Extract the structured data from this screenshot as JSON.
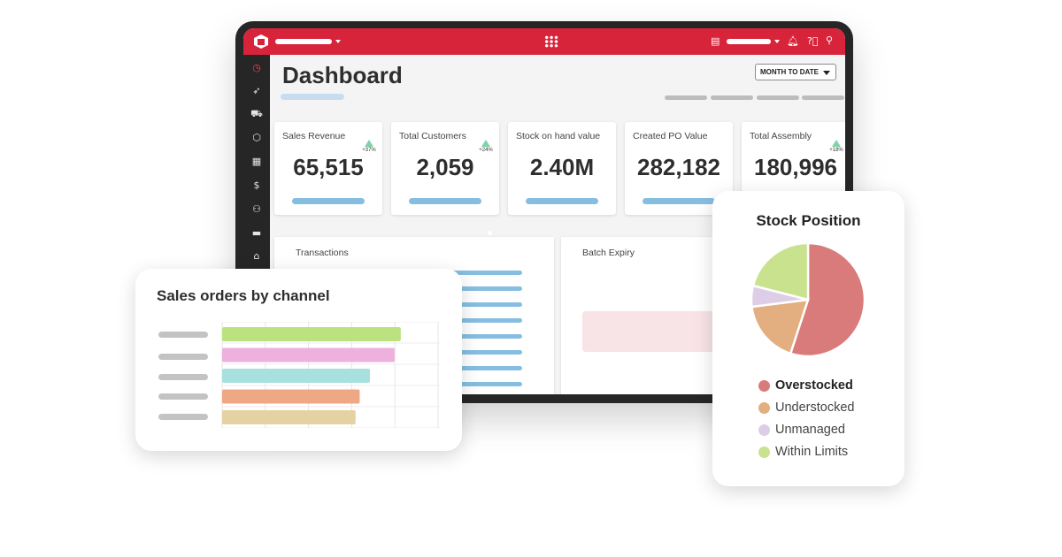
{
  "dashboard": {
    "title": "Dashboard",
    "date_filter": "MONTH TO DATE",
    "kpis": [
      {
        "label": "Sales Revenue",
        "value": "65,515",
        "trend": "+37%"
      },
      {
        "label": "Total Customers",
        "value": "2,059",
        "trend": "+24%"
      },
      {
        "label": "Stock on hand value",
        "value": "2.40M",
        "trend": ""
      },
      {
        "label": "Created PO Value",
        "value": "282,182",
        "trend": ""
      },
      {
        "label": "Total Assembly",
        "value": "180,996",
        "trend": "+18%"
      }
    ],
    "panels": {
      "transactions": "Transactions",
      "batch_expiry": "Batch Expiry"
    }
  },
  "sidebar_icons": [
    "dashboard-icon",
    "rocket-icon",
    "cart-icon",
    "box-icon",
    "truck-stack-icon",
    "dollar-icon",
    "users-icon",
    "delivery-icon",
    "store-icon"
  ],
  "colors": {
    "brand_red": "#d8243a",
    "kpi_bar": "#86bee2",
    "trend_up": "#7fd3a8"
  },
  "sales_orders": {
    "title": "Sales orders by channel",
    "chart_data": {
      "type": "bar",
      "orientation": "horizontal",
      "title": "Sales orders by channel",
      "categories": [
        "",
        "",
        "",
        "",
        ""
      ],
      "values": [
        0.87,
        0.84,
        0.72,
        0.67,
        0.65
      ],
      "colors": [
        "#bce27f",
        "#eeb0dc",
        "#a8e0e0",
        "#eea884",
        "#e4d2a2"
      ],
      "grid": true
    }
  },
  "stock_position": {
    "title": "Stock Position",
    "chart_data": {
      "type": "pie",
      "title": "Stock Position",
      "series": [
        {
          "name": "Overstocked",
          "value": 55,
          "color": "#d97b7b"
        },
        {
          "name": "Understocked",
          "value": 18,
          "color": "#e3ae80"
        },
        {
          "name": "Unmanaged",
          "value": 6,
          "color": "#ddcde6"
        },
        {
          "name": "Within Limits",
          "value": 21,
          "color": "#c9e28e"
        }
      ],
      "legend": "bottom"
    }
  }
}
